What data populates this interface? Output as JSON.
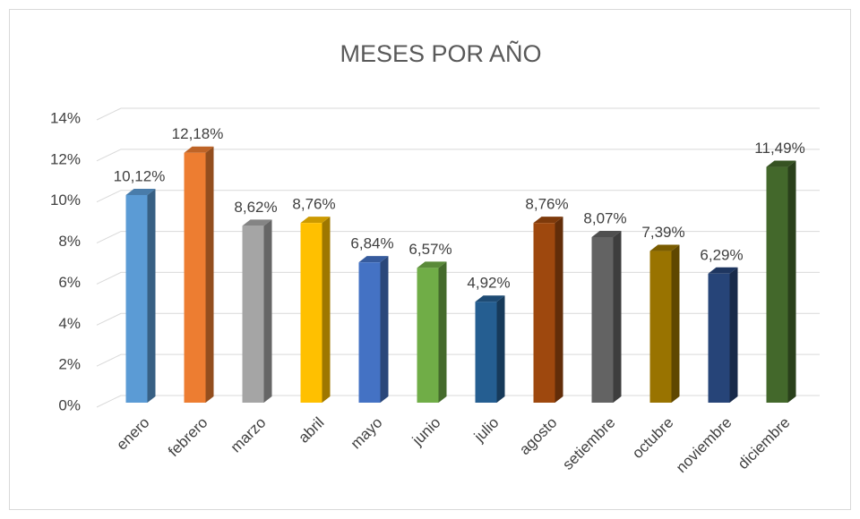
{
  "chart_data": {
    "type": "bar3d",
    "title": "MESES POR AÑO",
    "categories": [
      "enero",
      "febrero",
      "marzo",
      "abril",
      "mayo",
      "junio",
      "julio",
      "agosto",
      "setiembre",
      "octubre",
      "noviembre",
      "diciembre"
    ],
    "values": [
      10.12,
      12.18,
      8.62,
      8.76,
      6.84,
      6.57,
      4.92,
      8.76,
      8.07,
      7.39,
      6.29,
      11.49
    ],
    "value_labels": [
      "10,12%",
      "12,18%",
      "8,62%",
      "8,76%",
      "6,84%",
      "6,57%",
      "4,92%",
      "8,76%",
      "8,07%",
      "7,39%",
      "6,29%",
      "11,49%"
    ],
    "colors": [
      "#5b9bd5",
      "#ed7d31",
      "#a5a5a5",
      "#ffc000",
      "#4472c4",
      "#70ad47",
      "#255e91",
      "#9e480e",
      "#636363",
      "#997300",
      "#264478",
      "#43682b"
    ],
    "ylim": [
      0,
      14
    ],
    "yticks": [
      {
        "value": 0,
        "label": "0%"
      },
      {
        "value": 2,
        "label": "2%"
      },
      {
        "value": 4,
        "label": "4%"
      },
      {
        "value": 6,
        "label": "6%"
      },
      {
        "value": 8,
        "label": "8%"
      },
      {
        "value": 10,
        "label": "10%"
      },
      {
        "value": 12,
        "label": "12%"
      },
      {
        "value": 14,
        "label": "14%"
      }
    ],
    "grid": true
  }
}
